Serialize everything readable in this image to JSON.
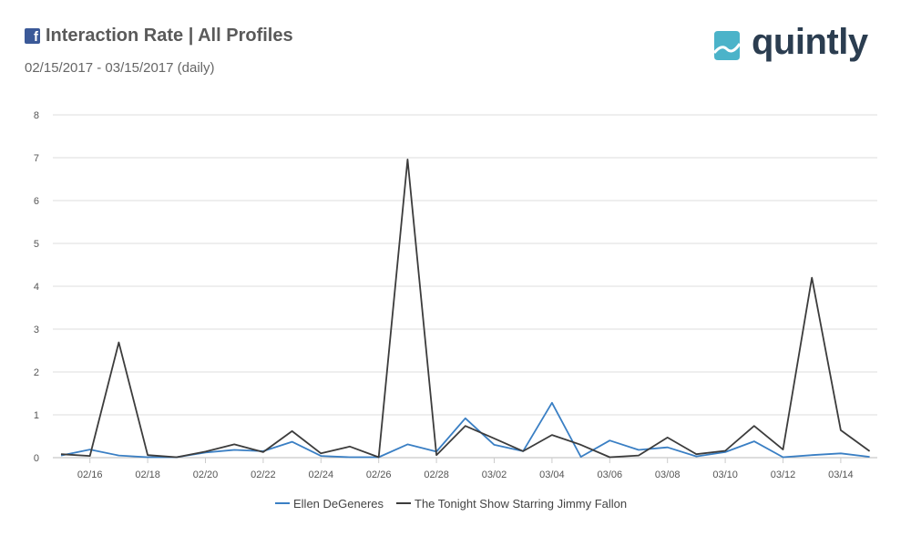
{
  "header": {
    "title": "Interaction Rate | All Profiles",
    "subtitle": "02/15/2017 - 03/15/2017 (daily)",
    "brand": "quintly",
    "fb_icon": "facebook-icon",
    "brand_icon": "quintly-logo-icon"
  },
  "chart_data": {
    "type": "line",
    "title": "Interaction Rate | All Profiles",
    "subtitle": "02/15/2017 - 03/15/2017 (daily)",
    "x": [
      "02/15",
      "02/16",
      "02/17",
      "02/18",
      "02/19",
      "02/20",
      "02/21",
      "02/22",
      "02/23",
      "02/24",
      "02/25",
      "02/26",
      "02/27",
      "02/28",
      "03/01",
      "03/02",
      "03/03",
      "03/04",
      "03/05",
      "03/06",
      "03/07",
      "03/08",
      "03/09",
      "03/10",
      "03/11",
      "03/12",
      "03/13",
      "03/14",
      "03/15"
    ],
    "x_tick_labels": [
      "02/16",
      "02/18",
      "02/20",
      "02/22",
      "02/24",
      "02/26",
      "02/28",
      "03/02",
      "03/04",
      "03/06",
      "03/08",
      "03/10",
      "03/12",
      "03/14"
    ],
    "ylim": [
      0,
      8
    ],
    "y_ticks": [
      0,
      1,
      2,
      3,
      4,
      5,
      6,
      7,
      8
    ],
    "grid": true,
    "legend_position": "bottom",
    "series": [
      {
        "name": "Ellen DeGeneres",
        "color": "#3a7fc4",
        "values": [
          0.05,
          0.19,
          0.05,
          0.01,
          0.01,
          0.12,
          0.18,
          0.15,
          0.37,
          0.04,
          0.01,
          0.01,
          0.31,
          0.14,
          0.92,
          0.3,
          0.15,
          1.28,
          0.02,
          0.4,
          0.18,
          0.24,
          0.03,
          0.13,
          0.38,
          0.01,
          0.06,
          0.1,
          0.02
        ]
      },
      {
        "name": "The Tonight Show Starring Jimmy Fallon",
        "color": "#3c3c3c",
        "values": [
          0.08,
          0.04,
          2.69,
          0.06,
          0.01,
          0.14,
          0.31,
          0.13,
          0.62,
          0.1,
          0.26,
          0.01,
          6.96,
          0.06,
          0.74,
          0.45,
          0.15,
          0.53,
          0.3,
          0.01,
          0.05,
          0.47,
          0.08,
          0.16,
          0.74,
          0.19,
          4.2,
          0.64,
          0.15
        ]
      }
    ]
  }
}
